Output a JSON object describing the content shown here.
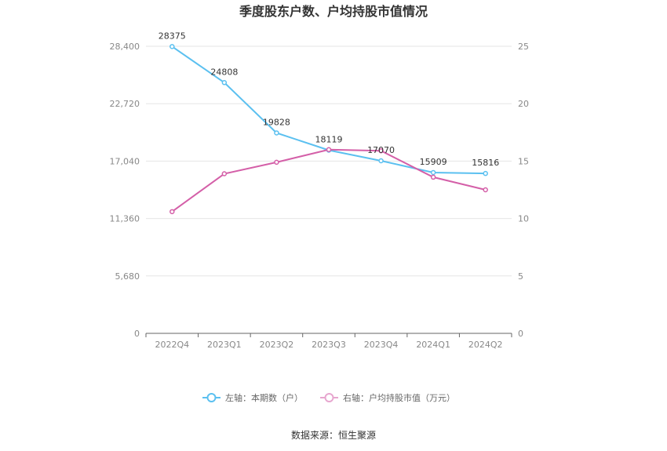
{
  "chart_data": {
    "type": "line",
    "title": "季度股东户数、户均持股市值情况",
    "categories": [
      "2022Q4",
      "2023Q1",
      "2023Q2",
      "2023Q3",
      "2023Q4",
      "2024Q1",
      "2024Q2"
    ],
    "left_axis": {
      "ticks": [
        "0",
        "5,680",
        "11,360",
        "17,040",
        "22,720",
        "28,400"
      ],
      "ylim": [
        0,
        28400
      ]
    },
    "right_axis": {
      "ticks": [
        "0",
        "5",
        "10",
        "15",
        "20",
        "25"
      ],
      "ylim": [
        0,
        25
      ]
    },
    "series": [
      {
        "name": "左轴：本期数（户）",
        "axis": "left",
        "color": "#5bc0f0",
        "values": [
          28375,
          24808,
          19828,
          18119,
          17070,
          15909,
          15816
        ],
        "labels": [
          "28375",
          "24808",
          "19828",
          "18119",
          "17070",
          "15909",
          "15816"
        ]
      },
      {
        "name": "右轴：户均持股市值（万元）",
        "axis": "right",
        "color": "#d45fa8",
        "values": [
          10.6,
          13.9,
          14.9,
          16.0,
          15.9,
          13.6,
          12.5
        ]
      }
    ],
    "grid": true,
    "legend_position": "bottom"
  },
  "source_text": "数据来源：恒生聚源"
}
